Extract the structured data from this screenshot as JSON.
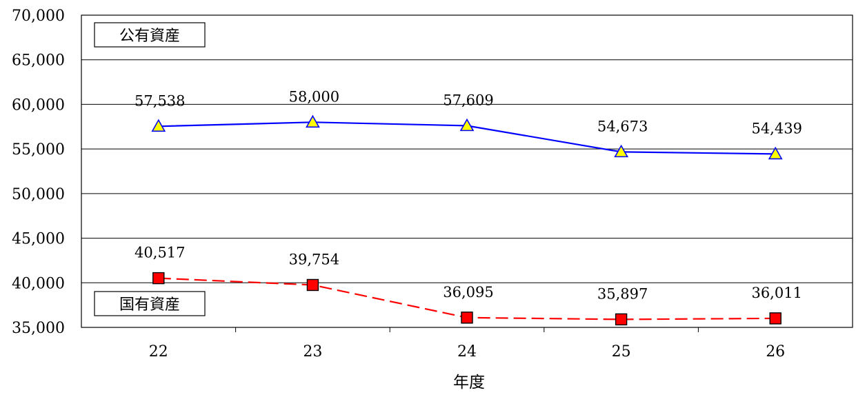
{
  "chart_data": {
    "type": "line",
    "xlabel": "年度",
    "ylabel": "",
    "categories": [
      "22",
      "23",
      "24",
      "25",
      "26"
    ],
    "ylim": [
      35000,
      70000
    ],
    "yticks": [
      35000,
      40000,
      45000,
      50000,
      55000,
      60000,
      65000,
      70000
    ],
    "ytick_labels": [
      "35,000",
      "40,000",
      "45,000",
      "50,000",
      "55,000",
      "60,000",
      "65,000",
      "70,000"
    ],
    "grid": true,
    "series": [
      {
        "name": "公有資産",
        "values": [
          57538,
          58000,
          57609,
          54673,
          54439
        ],
        "labels": [
          "57,538",
          "58,000",
          "57,609",
          "54,673",
          "54,439"
        ],
        "color": "#0000ff",
        "marker": "triangle",
        "marker_fill": "#ffff00",
        "line_style": "solid",
        "label_position": "top-left"
      },
      {
        "name": "国有資産",
        "values": [
          40517,
          39754,
          36095,
          35897,
          36011
        ],
        "labels": [
          "40,517",
          "39,754",
          "36,095",
          "35,897",
          "36,011"
        ],
        "color": "#ff0000",
        "marker": "square",
        "marker_fill": "#ff0000",
        "line_style": "dashed",
        "label_position": "bottom-left"
      }
    ]
  }
}
